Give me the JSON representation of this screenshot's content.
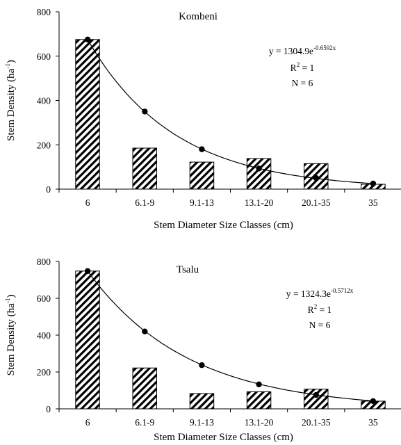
{
  "chart_data": [
    {
      "type": "bar",
      "title": "Kombeni",
      "xlabel": "Stem Diameter Size Classes (cm)",
      "ylabel": "Stem Density (ha",
      "ylabel_sup": "-1",
      "ylabel_close": ")",
      "ylim": [
        0,
        800
      ],
      "yticks": [
        "0",
        "200",
        "400",
        "600",
        "800"
      ],
      "categories": [
        "6",
        "6.1-9",
        "9.1-13",
        "13.1-20",
        "20.1-35",
        "35"
      ],
      "series": [
        {
          "values": [
            675,
            185,
            122,
            138,
            115,
            22
          ]
        }
      ],
      "fit_points": [
        675,
        350,
        180,
        93,
        50,
        25
      ],
      "fit": {
        "a": 1304.9,
        "b": -0.6592
      },
      "equation_prefix": "y = 1304.9e",
      "equation_exp": "-0.6592x",
      "r2_left": "R",
      "r2_sup": "2",
      "r2_right": " = 1",
      "n_text": "N = 6"
    },
    {
      "type": "bar",
      "title": "Tsalu",
      "xlabel": "Stem Diameter Size Classes (cm)",
      "ylabel": "Stem Density (ha",
      "ylabel_sup": "-1",
      "ylabel_close": ")",
      "ylim": [
        0,
        800
      ],
      "yticks": [
        "0",
        "200",
        "400",
        "600",
        "800"
      ],
      "categories": [
        "6",
        "6.1-9",
        "9.1-13",
        "13.1-20",
        "20.1-35",
        "35"
      ],
      "series": [
        {
          "values": [
            748,
            222,
            83,
            93,
            107,
            42
          ]
        }
      ],
      "fit_points": [
        748,
        420,
        237,
        133,
        75,
        42
      ],
      "fit": {
        "a": 1324.3,
        "b": -0.5712
      },
      "equation_prefix": "y = 1324.3e",
      "equation_exp": "-0.5712x",
      "r2_left": "R",
      "r2_sup": "2",
      "r2_right": " = 1",
      "n_text": "N = 6"
    }
  ]
}
